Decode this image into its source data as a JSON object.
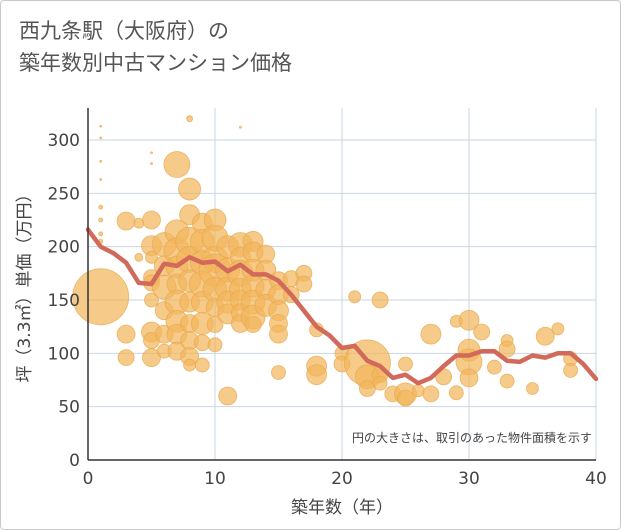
{
  "title_line1": "西九条駅（大阪府）の",
  "title_line2": "築年数別中古マンション価格",
  "colors": {
    "bubble": "#f2b65b",
    "bubble_stroke": "#e6a94f",
    "line": "#d16a5a",
    "grid": "#c9d6e3",
    "axis": "#333333"
  },
  "chart_data": {
    "type": "scatter",
    "title": "",
    "xlabel": "築年数（年）",
    "ylabel": "坪（3.3㎡）単価（万円）",
    "xlim": [
      0,
      40
    ],
    "ylim": [
      0,
      330
    ],
    "xticks": [
      0,
      10,
      20,
      30,
      40
    ],
    "yticks": [
      0,
      50,
      100,
      150,
      200,
      250,
      300
    ],
    "grid": true,
    "annotation": "円の大きさは、取引のあった物件面積を示す",
    "annotation_position": "bottom-right",
    "series": [
      {
        "kind": "bubble",
        "points": [
          [
            1,
            153,
            28
          ],
          [
            1,
            313,
            1
          ],
          [
            1,
            302,
            1
          ],
          [
            1,
            280,
            1
          ],
          [
            1,
            263,
            1
          ],
          [
            1,
            237,
            2
          ],
          [
            1,
            225,
            2
          ],
          [
            1,
            212,
            2
          ],
          [
            1,
            205,
            2
          ],
          [
            3,
            224,
            9
          ],
          [
            3,
            118,
            9
          ],
          [
            3,
            96,
            8
          ],
          [
            4,
            190,
            4
          ],
          [
            4,
            222,
            5
          ],
          [
            5,
            225,
            9
          ],
          [
            5,
            201,
            10
          ],
          [
            5,
            190,
            6
          ],
          [
            5,
            171,
            8
          ],
          [
            5,
            166,
            8
          ],
          [
            5,
            150,
            7
          ],
          [
            5,
            120,
            10
          ],
          [
            5,
            112,
            8
          ],
          [
            5,
            96,
            9
          ],
          [
            5,
            288,
            1
          ],
          [
            5,
            278,
            1
          ],
          [
            6,
            202,
            12
          ],
          [
            6,
            182,
            10
          ],
          [
            6,
            162,
            12
          ],
          [
            6,
            140,
            9
          ],
          [
            6,
            118,
            9
          ],
          [
            6,
            102,
            7
          ],
          [
            7,
            277,
            13
          ],
          [
            7,
            214,
            12
          ],
          [
            7,
            196,
            13
          ],
          [
            7,
            181,
            11
          ],
          [
            7,
            165,
            10
          ],
          [
            7,
            148,
            12
          ],
          [
            7,
            130,
            11
          ],
          [
            7,
            118,
            10
          ],
          [
            7,
            102,
            9
          ],
          [
            8,
            320,
            3
          ],
          [
            8,
            254,
            11
          ],
          [
            8,
            230,
            10
          ],
          [
            8,
            205,
            14
          ],
          [
            8,
            188,
            13
          ],
          [
            8,
            168,
            11
          ],
          [
            8,
            148,
            10
          ],
          [
            8,
            128,
            9
          ],
          [
            8,
            112,
            9
          ],
          [
            8,
            97,
            9
          ],
          [
            8,
            89,
            6
          ],
          [
            9,
            222,
            10
          ],
          [
            9,
            205,
            12
          ],
          [
            9,
            185,
            12
          ],
          [
            9,
            165,
            13
          ],
          [
            9,
            148,
            11
          ],
          [
            9,
            128,
            11
          ],
          [
            9,
            110,
            8
          ],
          [
            9,
            89,
            7
          ],
          [
            10,
            225,
            11
          ],
          [
            10,
            208,
            13
          ],
          [
            10,
            188,
            13
          ],
          [
            10,
            178,
            16
          ],
          [
            10,
            160,
            12
          ],
          [
            10,
            143,
            9
          ],
          [
            10,
            127,
            8
          ],
          [
            10,
            108,
            7
          ],
          [
            11,
            200,
            11
          ],
          [
            11,
            178,
            12
          ],
          [
            11,
            160,
            12
          ],
          [
            11,
            148,
            11
          ],
          [
            11,
            137,
            10
          ],
          [
            11,
            60,
            9
          ],
          [
            12,
            202,
            12
          ],
          [
            12,
            190,
            10
          ],
          [
            12,
            175,
            13
          ],
          [
            12,
            160,
            11
          ],
          [
            12,
            150,
            10
          ],
          [
            12,
            138,
            9
          ],
          [
            12,
            128,
            9
          ],
          [
            12,
            312,
            1
          ],
          [
            13,
            205,
            10
          ],
          [
            13,
            195,
            10
          ],
          [
            13,
            178,
            11
          ],
          [
            13,
            163,
            11
          ],
          [
            13,
            148,
            12
          ],
          [
            13,
            134,
            12
          ],
          [
            13,
            127,
            8
          ],
          [
            14,
            193,
            9
          ],
          [
            14,
            178,
            10
          ],
          [
            14,
            160,
            10
          ],
          [
            14,
            145,
            11
          ],
          [
            15,
            168,
            9
          ],
          [
            15,
            155,
            10
          ],
          [
            15,
            140,
            10
          ],
          [
            15,
            128,
            9
          ],
          [
            15,
            118,
            9
          ],
          [
            15,
            82,
            7
          ],
          [
            16,
            170,
            8
          ],
          [
            16,
            155,
            8
          ],
          [
            17,
            175,
            8
          ],
          [
            17,
            165,
            8
          ],
          [
            18,
            122,
            7
          ],
          [
            18,
            88,
            10
          ],
          [
            18,
            80,
            10
          ],
          [
            20,
            100,
            7
          ],
          [
            20,
            90,
            8
          ],
          [
            21,
            153,
            6
          ],
          [
            22,
            91,
            23
          ],
          [
            22,
            78,
            12
          ],
          [
            22,
            67,
            8
          ],
          [
            23,
            150,
            8
          ],
          [
            23,
            80,
            8
          ],
          [
            23,
            72,
            7
          ],
          [
            24,
            62,
            8
          ],
          [
            25,
            90,
            7
          ],
          [
            25,
            62,
            11
          ],
          [
            25,
            58,
            8
          ],
          [
            26,
            65,
            6
          ],
          [
            27,
            118,
            10
          ],
          [
            27,
            62,
            8
          ],
          [
            28,
            78,
            8
          ],
          [
            29,
            130,
            6
          ],
          [
            29,
            63,
            7
          ],
          [
            30,
            131,
            10
          ],
          [
            30,
            103,
            11
          ],
          [
            30,
            92,
            13
          ],
          [
            30,
            77,
            9
          ],
          [
            31,
            120,
            8
          ],
          [
            32,
            87,
            7
          ],
          [
            33,
            112,
            6
          ],
          [
            33,
            104,
            8
          ],
          [
            33,
            74,
            7
          ],
          [
            35,
            67,
            6
          ],
          [
            36,
            116,
            9
          ],
          [
            37,
            123,
            6
          ],
          [
            38,
            95,
            7
          ],
          [
            38,
            84,
            7
          ]
        ]
      },
      {
        "kind": "line",
        "name": "",
        "x": [
          0,
          1,
          2,
          3,
          4,
          5,
          6,
          7,
          8,
          9,
          10,
          11,
          12,
          13,
          14,
          15,
          16,
          17,
          18,
          19,
          20,
          21,
          22,
          23,
          24,
          25,
          26,
          27,
          28,
          29,
          30,
          31,
          32,
          33,
          34,
          35,
          36,
          37,
          38,
          39,
          40
        ],
        "y": [
          216,
          200,
          194,
          185,
          166,
          165,
          184,
          182,
          190,
          185,
          186,
          177,
          183,
          174,
          174,
          168,
          155,
          140,
          125,
          117,
          105,
          107,
          93,
          88,
          77,
          80,
          72,
          77,
          88,
          98,
          98,
          102,
          102,
          93,
          92,
          98,
          96,
          100,
          100,
          90,
          76
        ]
      }
    ]
  }
}
